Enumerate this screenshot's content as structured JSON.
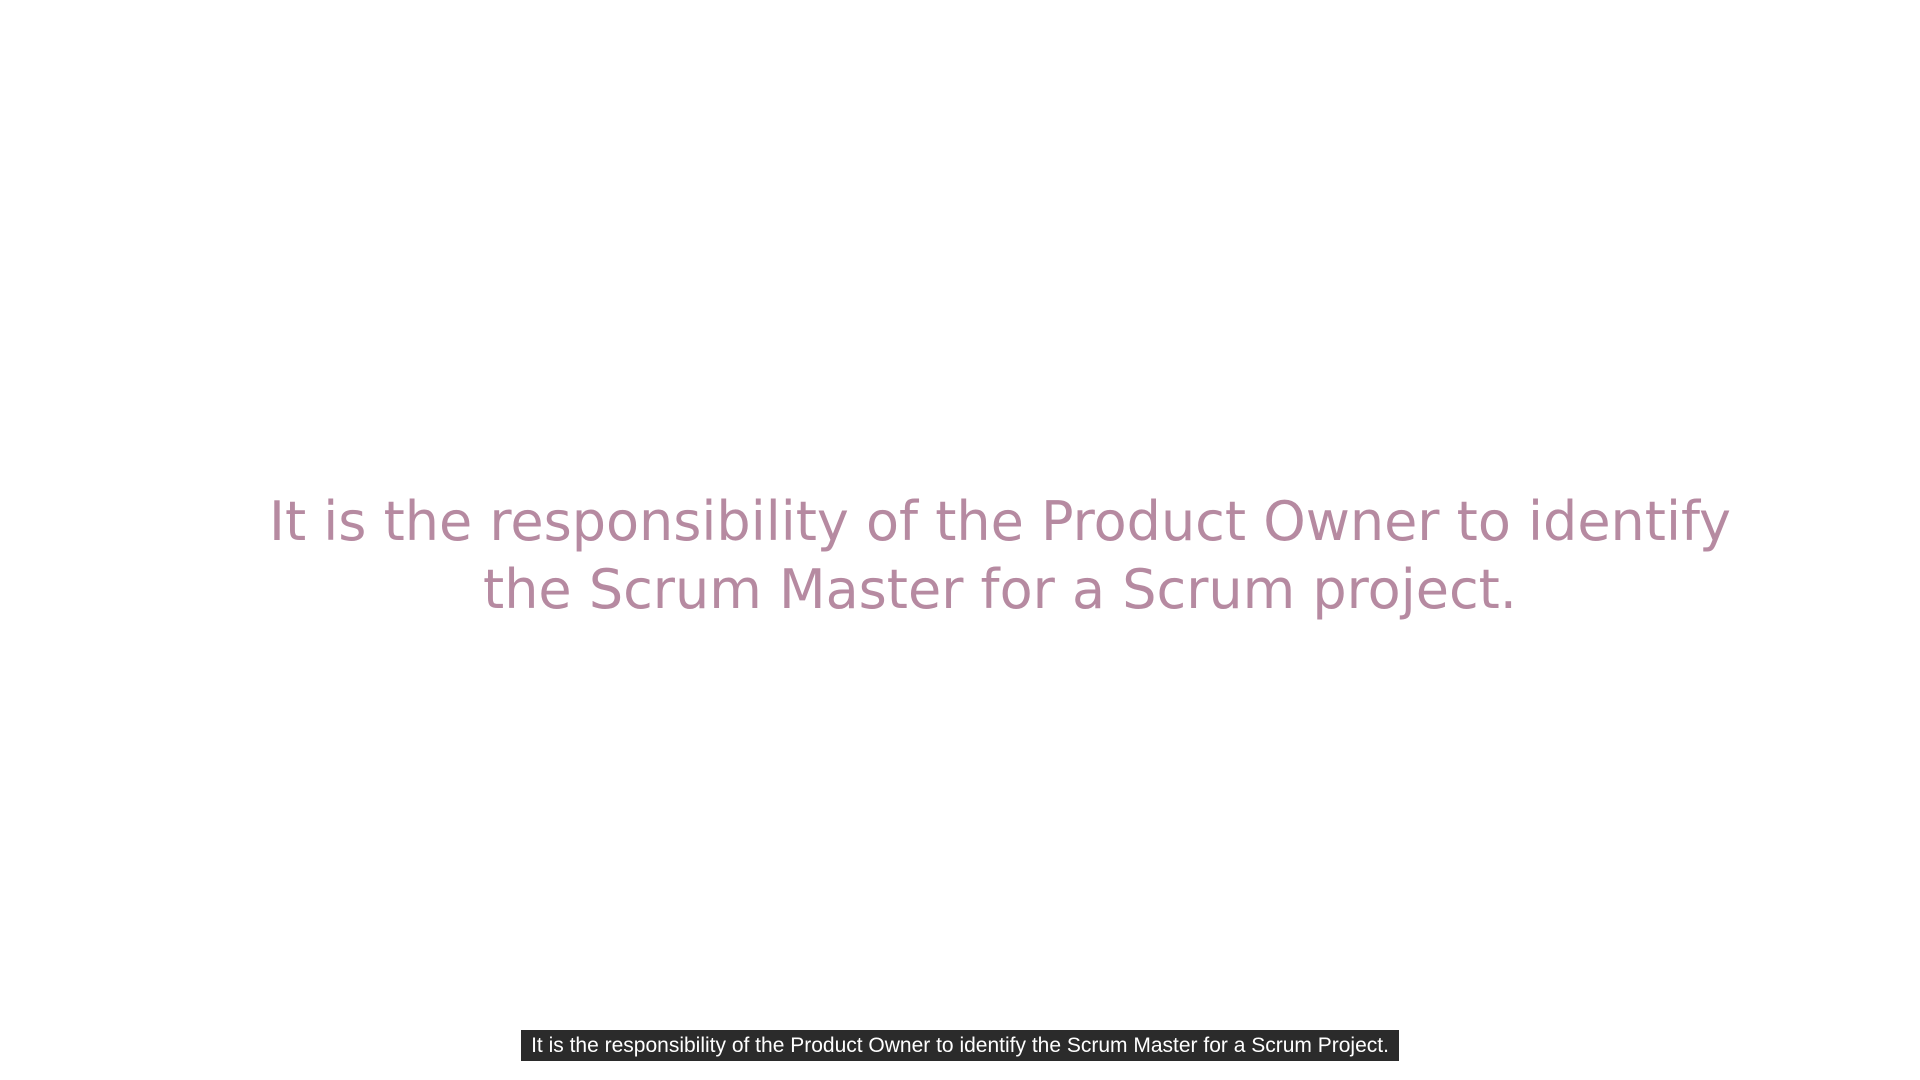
{
  "slide": {
    "statement": "It is the responsibility of the Product Owner to identify the Scrum Master for a Scrum project."
  },
  "captions": {
    "text": "It is the responsibility of the Product Owner to identify the Scrum Master for a Scrum Project."
  },
  "colors": {
    "background": "#ffffff",
    "statement_text": "#b68aa1",
    "caption_background": "#2b2b2b",
    "caption_text": "#ffffff"
  }
}
